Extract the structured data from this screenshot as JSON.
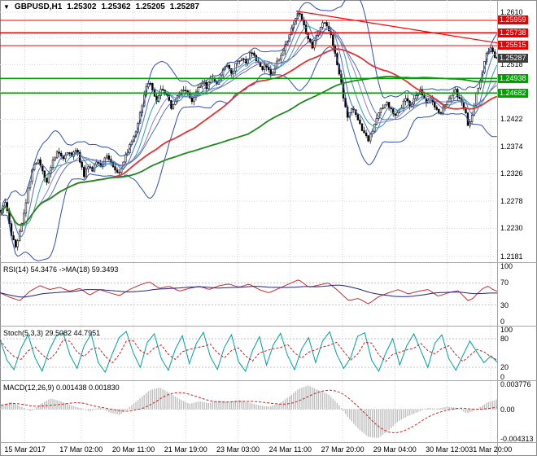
{
  "title": {
    "symbol": "GBPUSD,H1",
    "open": "1.25302",
    "high": "1.25362",
    "low": "1.25205",
    "close": "1.25287"
  },
  "colors": {
    "background": "#ffffff",
    "grid": "#d6d6d6",
    "level_dash": "#c2c2c2",
    "candle_outline": "#000000",
    "bull": "#ffffff",
    "bear": "#000000",
    "bollinger": "#2f4fb0",
    "ma_fast": [
      "#4a6fd0",
      "#2fa0a0",
      "#8a7fd0"
    ],
    "ma_red": "#e23333",
    "ma_green": "#1f8a1f",
    "resistance": "#ff0000",
    "support": "#00a000",
    "resistance_label_bg": "#e60000",
    "support_label_bg": "#00a000",
    "current_label_bg": "#3c3c3c",
    "rsi_line": "#c03030",
    "rsi_ma": "#202080",
    "stoch_k": "#00a0a0",
    "stoch_d": "#cc2020",
    "macd_hist": "#bdbdbd",
    "macd_signal": "#d02020",
    "separator": "#a6a6a6"
  },
  "chart_data": {
    "type": "candlestick",
    "symbol": "GBPUSD",
    "timeframe": "H1",
    "title": "GBPUSD,H1 1.25302 1.25362 1.25205 1.25287",
    "ohlc_display": {
      "open": 1.25302,
      "high": 1.25362,
      "low": 1.25205,
      "close": 1.25287
    },
    "num_candles": 240,
    "y_axis": {
      "top": 1.26315,
      "bottom": 1.2171,
      "ticks": [
        {
          "label": "1.2610",
          "value": 1.261
        },
        {
          "label": "1.2518",
          "value": 1.2518
        },
        {
          "label": "1.2422",
          "value": 1.2422
        },
        {
          "label": "1.2374",
          "value": 1.2374
        },
        {
          "label": "1.2326",
          "value": 1.2326
        },
        {
          "label": "1.2278",
          "value": 1.2278
        },
        {
          "label": "1.2230",
          "value": 1.223
        },
        {
          "label": "1.2181",
          "value": 1.2181
        }
      ],
      "grid_prices": [
        1.261,
        1.2566,
        1.2518,
        1.247,
        1.2422,
        1.2374,
        1.2326,
        1.2278,
        1.223,
        1.2181
      ]
    },
    "levels": {
      "resistance": [
        {
          "label": "1.25959",
          "value": 1.25959
        },
        {
          "label": "1.25738",
          "value": 1.25738
        },
        {
          "label": "1.25515",
          "value": 1.25515
        }
      ],
      "support": [
        {
          "label": "1.24938",
          "value": 1.24938
        },
        {
          "label": "1.24682",
          "value": 1.24682
        }
      ],
      "current": {
        "label": "1.25287",
        "value": 1.25287
      }
    },
    "trendline": {
      "x1": 0.595,
      "p1": 1.2612,
      "x2": 1.0,
      "p2": 1.2556
    },
    "price_path": [
      [
        0.0,
        1.2262
      ],
      [
        0.008,
        1.2275
      ],
      [
        0.015,
        1.2248
      ],
      [
        0.022,
        1.2215
      ],
      [
        0.03,
        1.2197
      ],
      [
        0.038,
        1.2225
      ],
      [
        0.046,
        1.2258
      ],
      [
        0.055,
        1.23
      ],
      [
        0.065,
        1.234
      ],
      [
        0.075,
        1.2355
      ],
      [
        0.082,
        1.2335
      ],
      [
        0.09,
        1.231
      ],
      [
        0.098,
        1.233
      ],
      [
        0.106,
        1.2352
      ],
      [
        0.115,
        1.2365
      ],
      [
        0.124,
        1.235
      ],
      [
        0.133,
        1.2368
      ],
      [
        0.142,
        1.2358
      ],
      [
        0.152,
        1.2372
      ],
      [
        0.16,
        1.2345
      ],
      [
        0.168,
        1.2322
      ],
      [
        0.176,
        1.2342
      ],
      [
        0.185,
        1.233
      ],
      [
        0.193,
        1.2352
      ],
      [
        0.202,
        1.2338
      ],
      [
        0.211,
        1.2362
      ],
      [
        0.22,
        1.235
      ],
      [
        0.23,
        1.2335
      ],
      [
        0.24,
        1.2328
      ],
      [
        0.25,
        1.2355
      ],
      [
        0.26,
        1.2375
      ],
      [
        0.27,
        1.2395
      ],
      [
        0.28,
        1.243
      ],
      [
        0.29,
        1.2468
      ],
      [
        0.298,
        1.2492
      ],
      [
        0.306,
        1.247
      ],
      [
        0.315,
        1.2452
      ],
      [
        0.325,
        1.2478
      ],
      [
        0.335,
        1.2462
      ],
      [
        0.345,
        1.244
      ],
      [
        0.355,
        1.2458
      ],
      [
        0.365,
        1.2478
      ],
      [
        0.375,
        1.2468
      ],
      [
        0.385,
        1.2452
      ],
      [
        0.395,
        1.247
      ],
      [
        0.405,
        1.2488
      ],
      [
        0.415,
        1.2478
      ],
      [
        0.425,
        1.2498
      ],
      [
        0.435,
        1.2485
      ],
      [
        0.445,
        1.2502
      ],
      [
        0.455,
        1.2518
      ],
      [
        0.465,
        1.2505
      ],
      [
        0.475,
        1.252
      ],
      [
        0.485,
        1.2532
      ],
      [
        0.495,
        1.2522
      ],
      [
        0.505,
        1.2542
      ],
      [
        0.515,
        1.2528
      ],
      [
        0.525,
        1.2508
      ],
      [
        0.535,
        1.2518
      ],
      [
        0.545,
        1.2502
      ],
      [
        0.555,
        1.2518
      ],
      [
        0.565,
        1.2538
      ],
      [
        0.575,
        1.2555
      ],
      [
        0.585,
        1.258
      ],
      [
        0.595,
        1.2605
      ],
      [
        0.602,
        1.2612
      ],
      [
        0.61,
        1.2588
      ],
      [
        0.618,
        1.2565
      ],
      [
        0.626,
        1.2548
      ],
      [
        0.634,
        1.2562
      ],
      [
        0.642,
        1.2578
      ],
      [
        0.652,
        1.2595
      ],
      [
        0.66,
        1.2582
      ],
      [
        0.668,
        1.256
      ],
      [
        0.676,
        1.2528
      ],
      [
        0.684,
        1.2495
      ],
      [
        0.692,
        1.2452
      ],
      [
        0.7,
        1.2425
      ],
      [
        0.71,
        1.2442
      ],
      [
        0.72,
        1.2418
      ],
      [
        0.73,
        1.2398
      ],
      [
        0.74,
        1.2385
      ],
      [
        0.748,
        1.2402
      ],
      [
        0.756,
        1.2422
      ],
      [
        0.765,
        1.2438
      ],
      [
        0.775,
        1.2452
      ],
      [
        0.785,
        1.2442
      ],
      [
        0.795,
        1.2425
      ],
      [
        0.805,
        1.2442
      ],
      [
        0.815,
        1.2458
      ],
      [
        0.825,
        1.2446
      ],
      [
        0.835,
        1.2462
      ],
      [
        0.845,
        1.2472
      ],
      [
        0.855,
        1.2452
      ],
      [
        0.865,
        1.2462
      ],
      [
        0.875,
        1.2445
      ],
      [
        0.885,
        1.2432
      ],
      [
        0.895,
        1.2448
      ],
      [
        0.905,
        1.2462
      ],
      [
        0.915,
        1.2475
      ],
      [
        0.925,
        1.2455
      ],
      [
        0.935,
        1.2442
      ],
      [
        0.943,
        1.2408
      ],
      [
        0.951,
        1.2438
      ],
      [
        0.96,
        1.2472
      ],
      [
        0.97,
        1.2505
      ],
      [
        0.98,
        1.2538
      ],
      [
        0.988,
        1.2552
      ],
      [
        0.994,
        1.2535
      ],
      [
        1.0,
        1.25287
      ]
    ],
    "time_axis": {
      "labels": [
        {
          "text": "15 Mar 2017",
          "x": 0.05
        },
        {
          "text": "17 Mar 02:00",
          "x": 0.163
        },
        {
          "text": "20 Mar 11:00",
          "x": 0.268
        },
        {
          "text": "21 Mar 19:00",
          "x": 0.373
        },
        {
          "text": "23 Mar 03:00",
          "x": 0.478
        },
        {
          "text": "24 Mar 11:00",
          "x": 0.583
        },
        {
          "text": "27 Mar 20:00",
          "x": 0.688
        },
        {
          "text": "29 Mar 04:00",
          "x": 0.793
        },
        {
          "text": "30 Mar 12:00",
          "x": 0.898
        },
        {
          "text": "31 Mar 20:00",
          "x": 0.985
        }
      ]
    },
    "indicators": {
      "rsi": {
        "label": "RSI(14) 54.3476  ->MA(18) 59.3493",
        "value": 54.3476,
        "ma_value": 59.3493,
        "range": [
          0,
          100
        ],
        "levels": [
          70,
          30
        ],
        "ticks": [
          {
            "label": "100",
            "value": 100
          },
          {
            "label": "70",
            "value": 70
          },
          {
            "label": "30",
            "value": 30
          },
          {
            "label": "0",
            "value": 0
          }
        ],
        "points": [
          [
            0.0,
            52
          ],
          [
            0.02,
            44
          ],
          [
            0.04,
            38
          ],
          [
            0.06,
            55
          ],
          [
            0.08,
            65
          ],
          [
            0.1,
            58
          ],
          [
            0.12,
            62
          ],
          [
            0.14,
            55
          ],
          [
            0.16,
            60
          ],
          [
            0.18,
            48
          ],
          [
            0.2,
            58
          ],
          [
            0.22,
            52
          ],
          [
            0.24,
            47
          ],
          [
            0.26,
            58
          ],
          [
            0.28,
            66
          ],
          [
            0.3,
            72
          ],
          [
            0.32,
            60
          ],
          [
            0.34,
            64
          ],
          [
            0.36,
            55
          ],
          [
            0.38,
            60
          ],
          [
            0.4,
            64
          ],
          [
            0.42,
            58
          ],
          [
            0.44,
            65
          ],
          [
            0.46,
            68
          ],
          [
            0.48,
            62
          ],
          [
            0.5,
            68
          ],
          [
            0.52,
            58
          ],
          [
            0.54,
            52
          ],
          [
            0.56,
            60
          ],
          [
            0.58,
            68
          ],
          [
            0.6,
            76
          ],
          [
            0.62,
            62
          ],
          [
            0.64,
            66
          ],
          [
            0.66,
            70
          ],
          [
            0.68,
            55
          ],
          [
            0.7,
            38
          ],
          [
            0.72,
            42
          ],
          [
            0.74,
            32
          ],
          [
            0.76,
            45
          ],
          [
            0.78,
            52
          ],
          [
            0.8,
            58
          ],
          [
            0.82,
            50
          ],
          [
            0.84,
            55
          ],
          [
            0.86,
            58
          ],
          [
            0.88,
            46
          ],
          [
            0.9,
            52
          ],
          [
            0.92,
            56
          ],
          [
            0.94,
            38
          ],
          [
            0.95,
            42
          ],
          [
            0.96,
            52
          ],
          [
            0.97,
            60
          ],
          [
            0.98,
            64
          ],
          [
            0.99,
            58
          ],
          [
            1.0,
            54.35
          ]
        ]
      },
      "stoch": {
        "label": "Stoch(5,3,3) 29.5082 44.7951",
        "k_value": 29.5082,
        "d_value": 44.7951,
        "range": [
          0,
          100
        ],
        "levels": [
          80,
          20
        ],
        "ticks": [
          {
            "label": "100",
            "value": 100
          },
          {
            "label": "80",
            "value": 80
          },
          {
            "label": "20",
            "value": 20
          },
          {
            "label": "0",
            "value": 0
          }
        ],
        "values": [
          78,
          35,
          15,
          60,
          88,
          40,
          12,
          55,
          85,
          92,
          45,
          18,
          65,
          90,
          30,
          10,
          48,
          82,
          95,
          50,
          20,
          72,
          90,
          38,
          14,
          58,
          86,
          28,
          70,
          93,
          42,
          16,
          62,
          88,
          32,
          12,
          55,
          84,
          25,
          68,
          91,
          45,
          15,
          58,
          82,
          30,
          75,
          94,
          48,
          18,
          40,
          85,
          92,
          35,
          12,
          50,
          80,
          25,
          65,
          90,
          55,
          20,
          70,
          88,
          38,
          14,
          45,
          75,
          52,
          30,
          44,
          29.5
        ]
      },
      "macd": {
        "label": "MACD(12,26,9) 0.001438 0.001830",
        "macd_value": 0.001438,
        "signal_value": 0.00183,
        "range": [
          -0.004313,
          0.003776
        ],
        "ticks": [
          {
            "label": "0.003776",
            "value": 0.003776
          },
          {
            "label": "0.00",
            "value": 0
          },
          {
            "label": "-0.004313",
            "value": -0.004313
          }
        ],
        "points": [
          [
            0.0,
            0.0006
          ],
          [
            0.02,
            0.0011
          ],
          [
            0.04,
            0.0004
          ],
          [
            0.06,
            -0.0003
          ],
          [
            0.08,
            0.0008
          ],
          [
            0.1,
            0.0016
          ],
          [
            0.12,
            0.0012
          ],
          [
            0.14,
            0.0006
          ],
          [
            0.16,
            0.0002
          ],
          [
            0.18,
            -0.0003
          ],
          [
            0.2,
            0.0003
          ],
          [
            0.22,
            -0.0005
          ],
          [
            0.24,
            -0.0008
          ],
          [
            0.26,
            0.0004
          ],
          [
            0.28,
            0.0016
          ],
          [
            0.3,
            0.0028
          ],
          [
            0.32,
            0.0032
          ],
          [
            0.34,
            0.0024
          ],
          [
            0.36,
            0.0015
          ],
          [
            0.38,
            0.0008
          ],
          [
            0.4,
            0.0012
          ],
          [
            0.42,
            0.0009
          ],
          [
            0.44,
            0.0013
          ],
          [
            0.46,
            0.0011
          ],
          [
            0.48,
            0.0014
          ],
          [
            0.5,
            0.001
          ],
          [
            0.52,
            0.0006
          ],
          [
            0.54,
            0.0004
          ],
          [
            0.56,
            0.0008
          ],
          [
            0.58,
            0.0018
          ],
          [
            0.6,
            0.003
          ],
          [
            0.62,
            0.0035
          ],
          [
            0.64,
            0.0028
          ],
          [
            0.66,
            0.0022
          ],
          [
            0.68,
            0.0008
          ],
          [
            0.7,
            -0.0012
          ],
          [
            0.72,
            -0.0028
          ],
          [
            0.74,
            -0.004
          ],
          [
            0.76,
            -0.0042
          ],
          [
            0.78,
            -0.0032
          ],
          [
            0.8,
            -0.0018
          ],
          [
            0.82,
            -0.001
          ],
          [
            0.84,
            -0.0004
          ],
          [
            0.86,
            0.0002
          ],
          [
            0.88,
            0.0001
          ],
          [
            0.9,
            0.0004
          ],
          [
            0.92,
            0.0002
          ],
          [
            0.94,
            -0.0006
          ],
          [
            0.96,
            0.0
          ],
          [
            0.98,
            0.001
          ],
          [
            1.0,
            0.00144
          ]
        ]
      }
    }
  }
}
